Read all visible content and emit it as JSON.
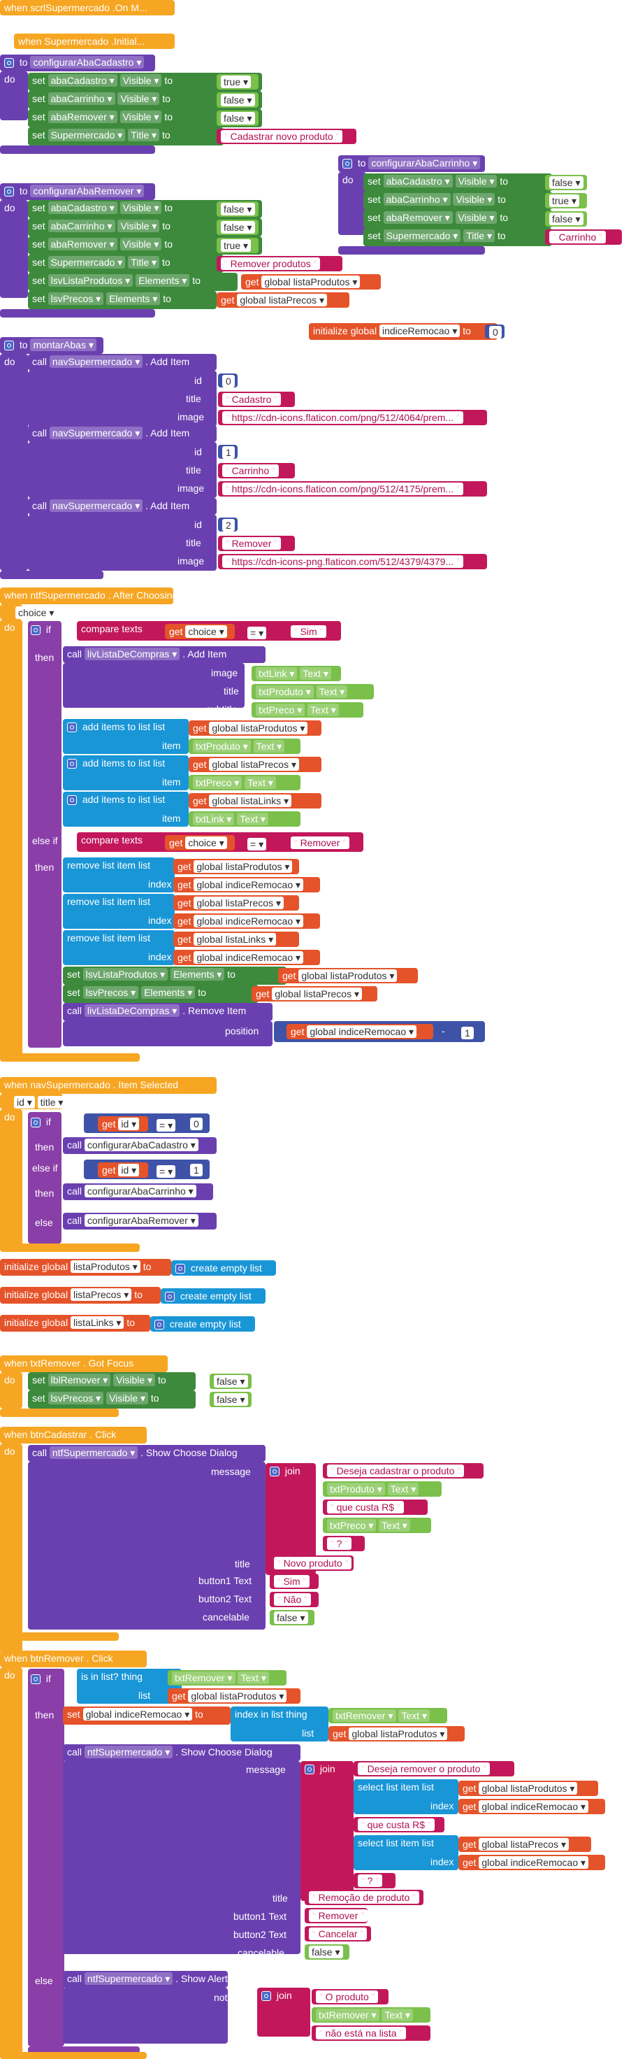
{
  "events": {
    "scr_initialize": "when  scrlSupermercado .On M...",
    "scr_initialize2": "when  Supermercado .Initial...",
    "ntf_after": "when  ntfSupermercado . After Choosing",
    "nav_selected": "when  navSupermercado . Item Selected",
    "txt_focus": "when  txtRemover . Got Focus",
    "btn_cad": "when  btnCadastrar . Click",
    "btn_rem": "when  btnRemover . Click"
  },
  "procs": {
    "cadastro": "configurarAbaCadastro",
    "remover": "configurarAbaRemover",
    "carrinho": "configurarAbaCarrinho",
    "montar": "montarAbas"
  },
  "kw": {
    "to": "to",
    "do": "do",
    "set": "set",
    "call": "call",
    "get": "get",
    "if": "if",
    "then": "then",
    "else_if": "else if",
    "else": "else",
    "init_global": "initialize global",
    "create_list": "create empty list",
    "compare": "compare texts",
    "join": "join",
    "add_items": "add items to list  list",
    "item": "item",
    "remove_item": "remove list item  list",
    "index": "index",
    "is_in_list": "is in list? thing",
    "list": "list",
    "index_in_list": "index in list  thing",
    "select_item": "select list item  list",
    "add_item": ". Add Item",
    "remove_item_m": ". Remove Item",
    "show_choose": ". Show Choose Dialog",
    "show_alert": ". Show Alert",
    "id": "id",
    "title": "title",
    "image": "image",
    "subtitle": "subtitle",
    "position": "position",
    "message": "message",
    "button1": "button1 Text",
    "button2": "button2 Text",
    "cancelable": "cancelable",
    "notice": "notice",
    "choice": "choice",
    "eq": "=",
    "minus": "-"
  },
  "components": {
    "abaCadastro": "abaCadastro",
    "abaCarrinho": "abaCarrinho",
    "abaRemover": "abaRemover",
    "Supermercado": "Supermercado",
    "lsvListaProdutos": "lsvListaProdutos",
    "lsvPrecos": "lsvPrecos",
    "navSupermercado": "navSupermercado",
    "livListaDeCompras": "livListaDeCompras",
    "txtLink": "txtLink",
    "txtProduto": "txtProduto",
    "txtPreco": "txtPreco",
    "lblRemover": "lblRemover",
    "txtRemover": "txtRemover",
    "ntfSupermercado": "ntfSupermercado",
    "Visible": "Visible",
    "Title": "Title",
    "Elements": "Elements",
    "Text": "Text"
  },
  "globals": {
    "listaProdutos": "global listaProdutos",
    "listaPrecos": "global listaPrecos",
    "listaLinks": "global listaLinks",
    "indiceRemocao": "global indiceRemocao",
    "n_indice": "indiceRemocao",
    "n_produtos": "listaProdutos",
    "n_precos": "listaPrecos",
    "n_links": "listaLinks"
  },
  "values": {
    "true": "true",
    "false": "false",
    "zero": "0",
    "one": "1",
    "two": "2",
    "cad_title": "Cadastrar novo produto",
    "rem_title": "Remover produtos",
    "car_title": "Carrinho",
    "cadastro": "Cadastro",
    "carrinho": "Carrinho",
    "remover": "Remover",
    "url1": "https://cdn-icons.flaticon.com/png/512/4064/prem...",
    "url2": "https://cdn-icons.flaticon.com/png/512/4175/prem...",
    "url3": "https://cdn-icons-png.flaticon.com/512/4379/4379...",
    "sim": "Sim",
    "nao": "Não",
    "msg1": "Deseja cadastrar o produto",
    "custa": "que custa R$",
    "qm": "?",
    "novo_produto": "Novo produto",
    "msg2": "Deseja remover o produto",
    "remocao": "Remoção de produto",
    "cancelar": "Cancelar",
    "o_produto": "O produto",
    "nao_esta": "não está na lista"
  }
}
